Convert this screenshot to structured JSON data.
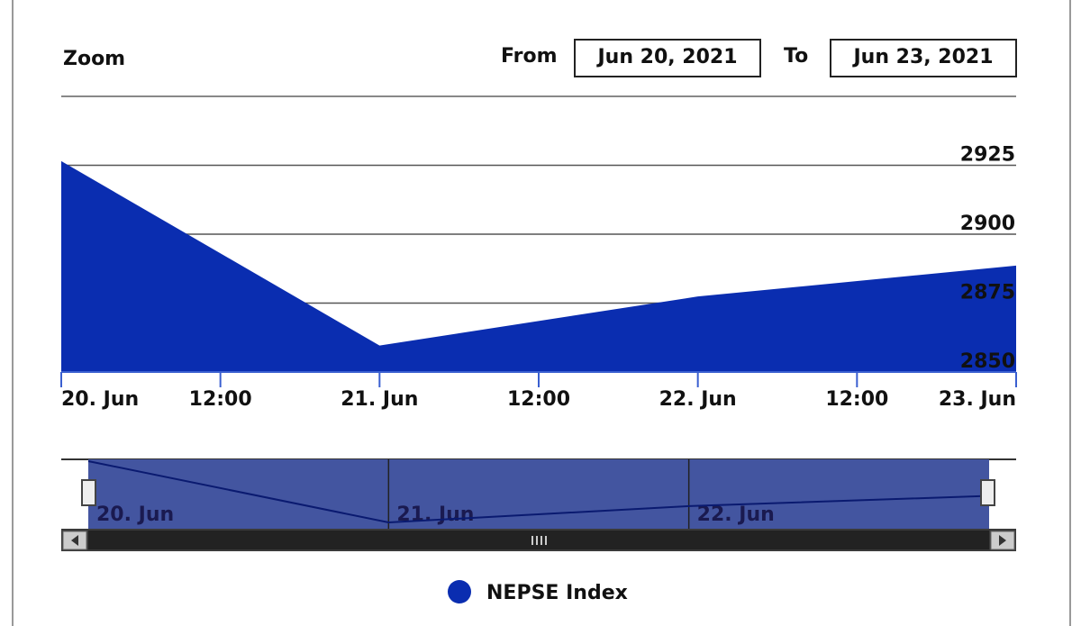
{
  "chart_data": {
    "type": "area",
    "zoom_label": "Zoom",
    "from_label": "From",
    "from_value": "Jun 20, 2021",
    "to_label": "To",
    "to_value": "Jun 23, 2021",
    "x": [
      "20. Jun",
      "21. Jun",
      "22. Jun",
      "23. Jun"
    ],
    "series": [
      {
        "name": "NEPSE Index",
        "color": "#0a2db0",
        "values": [
          2926.5,
          2859.6,
          2877.4,
          2888.6
        ]
      }
    ],
    "xticks": [
      "20. Jun",
      "12:00",
      "21. Jun",
      "12:00",
      "22. Jun",
      "12:00",
      "23. Jun"
    ],
    "navigator_labels": [
      "20. Jun",
      "21. Jun",
      "22. Jun"
    ],
    "ylim": [
      2850,
      2950
    ],
    "yticks": [
      2850,
      2875,
      2900,
      2925
    ],
    "grid": true,
    "legend": "bottom"
  }
}
